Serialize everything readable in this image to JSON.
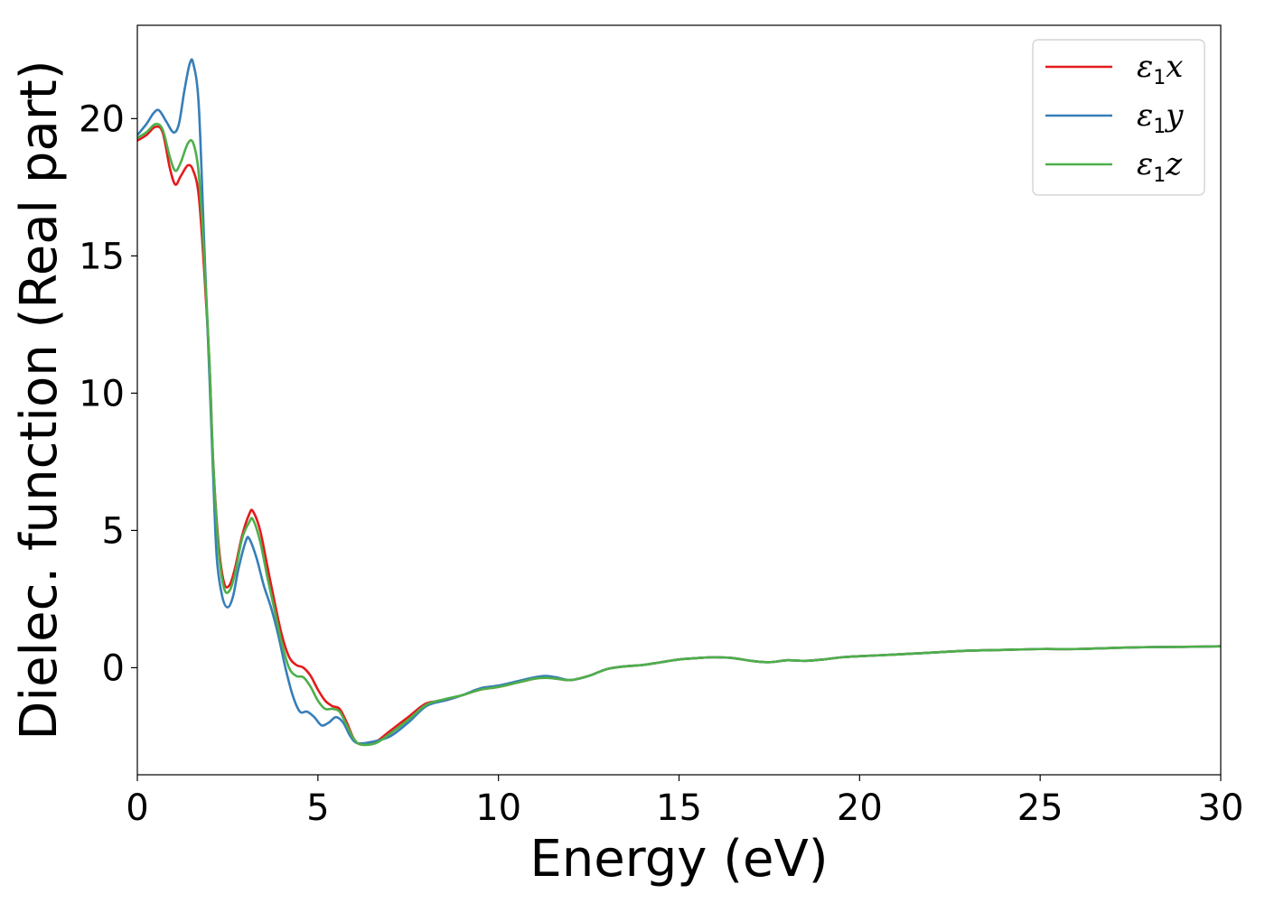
{
  "chart_data": {
    "type": "line",
    "xlabel": "Energy (eV)",
    "ylabel": "Dielec. function (Real part)",
    "xlim": [
      0,
      30
    ],
    "ylim": [
      -3.9,
      23.4
    ],
    "xticks": [
      0,
      5,
      10,
      15,
      20,
      25,
      30
    ],
    "yticks": [
      0,
      5,
      10,
      15,
      20
    ],
    "grid": false,
    "legend_position": "top-right",
    "series": [
      {
        "name": "ε1x",
        "legend_symbol": "ε",
        "legend_subscript": "1",
        "legend_suffix": "x",
        "color": "#e41a1c",
        "points": [
          [
            0,
            19.2
          ],
          [
            0.25,
            19.4
          ],
          [
            0.5,
            19.7
          ],
          [
            0.7,
            19.5
          ],
          [
            0.9,
            18.2
          ],
          [
            1.05,
            17.6
          ],
          [
            1.2,
            17.9
          ],
          [
            1.4,
            18.3
          ],
          [
            1.55,
            18.1
          ],
          [
            1.7,
            17.2
          ],
          [
            1.85,
            14.5
          ],
          [
            2.0,
            11.0
          ],
          [
            2.1,
            7.5
          ],
          [
            2.25,
            4.5
          ],
          [
            2.4,
            3.1
          ],
          [
            2.55,
            3.0
          ],
          [
            2.7,
            3.6
          ],
          [
            2.9,
            4.8
          ],
          [
            3.1,
            5.6
          ],
          [
            3.2,
            5.7
          ],
          [
            3.4,
            5.0
          ],
          [
            3.6,
            3.7
          ],
          [
            3.8,
            2.4
          ],
          [
            4.0,
            1.2
          ],
          [
            4.2,
            0.4
          ],
          [
            4.4,
            0.1
          ],
          [
            4.6,
            0.0
          ],
          [
            4.8,
            -0.3
          ],
          [
            5.0,
            -0.8
          ],
          [
            5.2,
            -1.2
          ],
          [
            5.4,
            -1.4
          ],
          [
            5.6,
            -1.5
          ],
          [
            5.8,
            -2.0
          ],
          [
            6.0,
            -2.6
          ],
          [
            6.2,
            -2.8
          ],
          [
            6.6,
            -2.7
          ],
          [
            7.0,
            -2.3
          ],
          [
            7.5,
            -1.8
          ],
          [
            8.0,
            -1.3
          ],
          [
            8.5,
            -1.2
          ],
          [
            9.0,
            -1.0
          ],
          [
            9.5,
            -0.8
          ],
          [
            10.0,
            -0.7
          ],
          [
            10.5,
            -0.55
          ],
          [
            11.0,
            -0.4
          ],
          [
            11.3,
            -0.35
          ],
          [
            11.6,
            -0.4
          ],
          [
            12.0,
            -0.45
          ],
          [
            12.5,
            -0.3
          ],
          [
            13.0,
            -0.05
          ],
          [
            13.5,
            0.05
          ],
          [
            14.0,
            0.1
          ],
          [
            14.5,
            0.2
          ],
          [
            15.0,
            0.3
          ],
          [
            15.5,
            0.35
          ],
          [
            16.0,
            0.38
          ],
          [
            16.5,
            0.35
          ],
          [
            17.0,
            0.25
          ],
          [
            17.5,
            0.2
          ],
          [
            18.0,
            0.27
          ],
          [
            18.5,
            0.25
          ],
          [
            19.0,
            0.3
          ],
          [
            19.5,
            0.38
          ],
          [
            20.0,
            0.42
          ],
          [
            21.0,
            0.48
          ],
          [
            22.0,
            0.55
          ],
          [
            23.0,
            0.62
          ],
          [
            24.0,
            0.65
          ],
          [
            25.0,
            0.68
          ],
          [
            26.0,
            0.68
          ],
          [
            27.0,
            0.72
          ],
          [
            28.0,
            0.75
          ],
          [
            29.0,
            0.76
          ],
          [
            30.0,
            0.78
          ]
        ]
      },
      {
        "name": "ε1y",
        "legend_symbol": "ε",
        "legend_subscript": "1",
        "legend_suffix": "y",
        "color": "#377eb8",
        "points": [
          [
            0,
            19.4
          ],
          [
            0.25,
            19.8
          ],
          [
            0.45,
            20.2
          ],
          [
            0.6,
            20.3
          ],
          [
            0.8,
            19.9
          ],
          [
            1.0,
            19.5
          ],
          [
            1.15,
            19.8
          ],
          [
            1.3,
            21.0
          ],
          [
            1.45,
            22.0
          ],
          [
            1.55,
            22.0
          ],
          [
            1.7,
            20.5
          ],
          [
            1.85,
            15.5
          ],
          [
            2.0,
            10.5
          ],
          [
            2.1,
            7.0
          ],
          [
            2.2,
            4.0
          ],
          [
            2.35,
            2.6
          ],
          [
            2.5,
            2.2
          ],
          [
            2.65,
            2.6
          ],
          [
            2.8,
            3.6
          ],
          [
            3.0,
            4.6
          ],
          [
            3.1,
            4.7
          ],
          [
            3.3,
            4.0
          ],
          [
            3.5,
            3.0
          ],
          [
            3.7,
            2.2
          ],
          [
            3.9,
            1.2
          ],
          [
            4.1,
            0.0
          ],
          [
            4.3,
            -1.0
          ],
          [
            4.5,
            -1.6
          ],
          [
            4.7,
            -1.6
          ],
          [
            4.9,
            -1.8
          ],
          [
            5.1,
            -2.1
          ],
          [
            5.3,
            -2.0
          ],
          [
            5.5,
            -1.8
          ],
          [
            5.7,
            -2.0
          ],
          [
            5.9,
            -2.5
          ],
          [
            6.1,
            -2.75
          ],
          [
            6.5,
            -2.7
          ],
          [
            7.0,
            -2.5
          ],
          [
            7.5,
            -2.0
          ],
          [
            8.0,
            -1.4
          ],
          [
            8.5,
            -1.2
          ],
          [
            9.0,
            -1.0
          ],
          [
            9.5,
            -0.75
          ],
          [
            10.0,
            -0.65
          ],
          [
            10.5,
            -0.5
          ],
          [
            11.0,
            -0.35
          ],
          [
            11.3,
            -0.3
          ],
          [
            11.6,
            -0.35
          ],
          [
            12.0,
            -0.45
          ],
          [
            12.5,
            -0.3
          ],
          [
            13.0,
            -0.05
          ],
          [
            13.5,
            0.05
          ],
          [
            14.0,
            0.1
          ],
          [
            14.5,
            0.2
          ],
          [
            15.0,
            0.3
          ],
          [
            15.5,
            0.35
          ],
          [
            16.0,
            0.38
          ],
          [
            16.5,
            0.35
          ],
          [
            17.0,
            0.25
          ],
          [
            17.5,
            0.2
          ],
          [
            18.0,
            0.27
          ],
          [
            18.5,
            0.25
          ],
          [
            19.0,
            0.3
          ],
          [
            19.5,
            0.38
          ],
          [
            20.0,
            0.42
          ],
          [
            21.0,
            0.48
          ],
          [
            22.0,
            0.55
          ],
          [
            23.0,
            0.62
          ],
          [
            24.0,
            0.65
          ],
          [
            25.0,
            0.68
          ],
          [
            26.0,
            0.68
          ],
          [
            27.0,
            0.72
          ],
          [
            28.0,
            0.75
          ],
          [
            29.0,
            0.76
          ],
          [
            30.0,
            0.78
          ]
        ]
      },
      {
        "name": "ε1z",
        "legend_symbol": "ε",
        "legend_subscript": "1",
        "legend_suffix": "z",
        "color": "#4daf4a",
        "points": [
          [
            0,
            19.3
          ],
          [
            0.25,
            19.5
          ],
          [
            0.5,
            19.8
          ],
          [
            0.7,
            19.6
          ],
          [
            0.9,
            18.6
          ],
          [
            1.05,
            18.1
          ],
          [
            1.2,
            18.4
          ],
          [
            1.4,
            19.1
          ],
          [
            1.55,
            19.1
          ],
          [
            1.7,
            18.0
          ],
          [
            1.85,
            15.0
          ],
          [
            2.0,
            11.0
          ],
          [
            2.1,
            7.5
          ],
          [
            2.25,
            4.3
          ],
          [
            2.4,
            2.9
          ],
          [
            2.55,
            2.8
          ],
          [
            2.7,
            3.4
          ],
          [
            2.9,
            4.7
          ],
          [
            3.1,
            5.3
          ],
          [
            3.2,
            5.4
          ],
          [
            3.4,
            4.6
          ],
          [
            3.6,
            3.3
          ],
          [
            3.8,
            2.1
          ],
          [
            4.0,
            0.9
          ],
          [
            4.2,
            0.0
          ],
          [
            4.4,
            -0.3
          ],
          [
            4.6,
            -0.35
          ],
          [
            4.8,
            -0.7
          ],
          [
            5.0,
            -1.2
          ],
          [
            5.2,
            -1.5
          ],
          [
            5.4,
            -1.5
          ],
          [
            5.6,
            -1.6
          ],
          [
            5.8,
            -2.1
          ],
          [
            6.0,
            -2.6
          ],
          [
            6.2,
            -2.8
          ],
          [
            6.6,
            -2.75
          ],
          [
            7.0,
            -2.4
          ],
          [
            7.5,
            -1.9
          ],
          [
            8.0,
            -1.35
          ],
          [
            8.5,
            -1.15
          ],
          [
            9.0,
            -1.0
          ],
          [
            9.5,
            -0.8
          ],
          [
            10.0,
            -0.7
          ],
          [
            10.5,
            -0.55
          ],
          [
            11.0,
            -0.4
          ],
          [
            11.3,
            -0.37
          ],
          [
            11.6,
            -0.4
          ],
          [
            12.0,
            -0.45
          ],
          [
            12.5,
            -0.3
          ],
          [
            13.0,
            -0.05
          ],
          [
            13.5,
            0.05
          ],
          [
            14.0,
            0.1
          ],
          [
            14.5,
            0.2
          ],
          [
            15.0,
            0.3
          ],
          [
            15.5,
            0.35
          ],
          [
            16.0,
            0.38
          ],
          [
            16.5,
            0.35
          ],
          [
            17.0,
            0.25
          ],
          [
            17.5,
            0.2
          ],
          [
            18.0,
            0.27
          ],
          [
            18.5,
            0.25
          ],
          [
            19.0,
            0.3
          ],
          [
            19.5,
            0.38
          ],
          [
            20.0,
            0.42
          ],
          [
            21.0,
            0.48
          ],
          [
            22.0,
            0.55
          ],
          [
            23.0,
            0.62
          ],
          [
            24.0,
            0.65
          ],
          [
            25.0,
            0.68
          ],
          [
            26.0,
            0.68
          ],
          [
            27.0,
            0.72
          ],
          [
            28.0,
            0.75
          ],
          [
            29.0,
            0.76
          ],
          [
            30.0,
            0.78
          ]
        ]
      }
    ]
  }
}
